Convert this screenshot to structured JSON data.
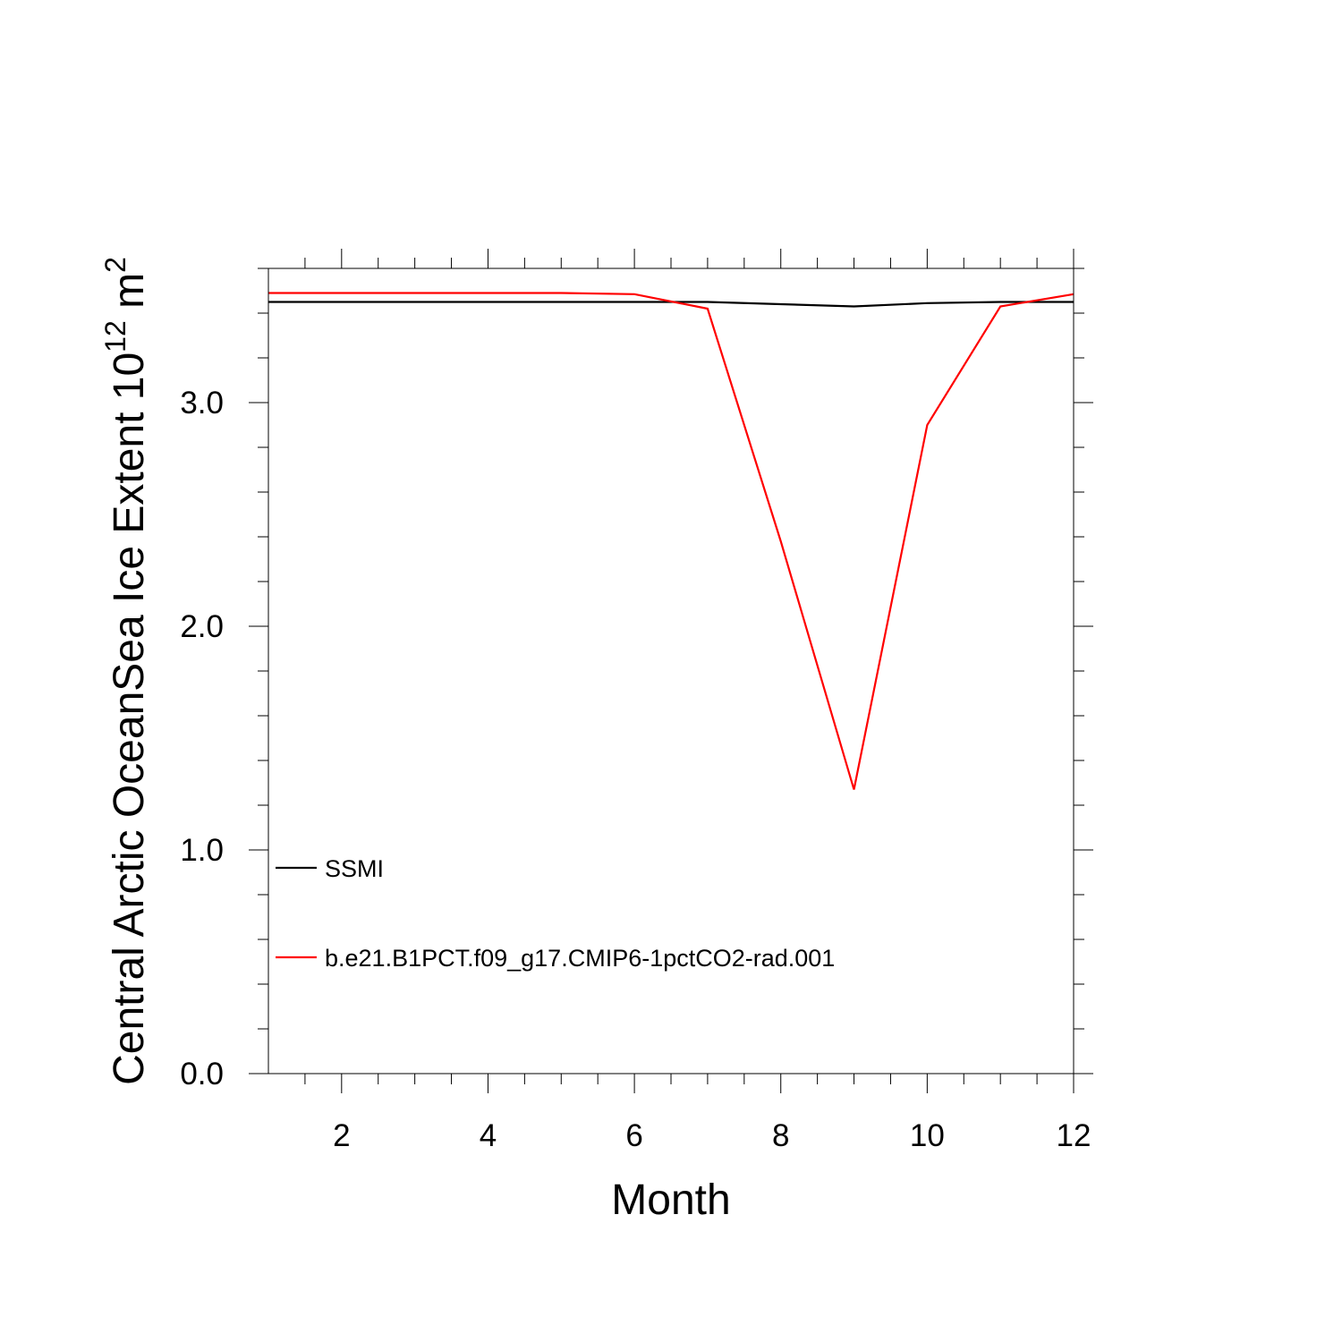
{
  "chart_data": {
    "type": "line",
    "title": "",
    "xlabel": "Month",
    "ylabel": {
      "main": "Central Arctic OceanSea Ice Extent 10",
      "exp1": "12",
      "unit": " m",
      "exp2": "2"
    },
    "xlim": [
      1,
      12
    ],
    "ylim": [
      0,
      3.6
    ],
    "x_major_ticks": [
      2,
      4,
      6,
      8,
      10,
      12
    ],
    "x_tick_labels": [
      "2",
      "4",
      "6",
      "8",
      "10",
      "12"
    ],
    "y_major_ticks": [
      0,
      1,
      2,
      3
    ],
    "y_tick_labels": [
      "0.0",
      "1.0",
      "2.0",
      "3.0"
    ],
    "x": [
      1,
      2,
      3,
      4,
      5,
      6,
      7,
      8,
      9,
      10,
      11,
      12
    ],
    "series": [
      {
        "name": "SSMI",
        "color": "#000000",
        "values": [
          3.45,
          3.45,
          3.45,
          3.45,
          3.45,
          3.45,
          3.45,
          3.44,
          3.43,
          3.445,
          3.45,
          3.45
        ]
      },
      {
        "name": "b.e21.B1PCT.f09_g17.CMIP6-1pctCO2-rad.001",
        "color": "#ff0000",
        "values": [
          3.49,
          3.49,
          3.49,
          3.49,
          3.49,
          3.485,
          3.42,
          2.38,
          1.27,
          2.9,
          3.43,
          3.485
        ]
      }
    ],
    "legend_position": "lower-left",
    "grid": false
  }
}
